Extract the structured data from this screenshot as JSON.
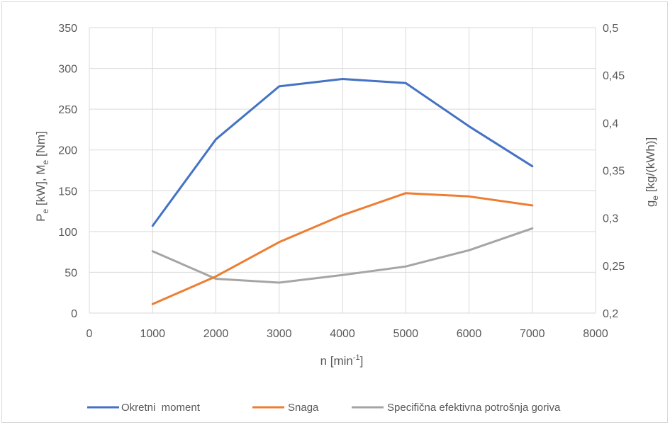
{
  "chart_data": {
    "type": "line",
    "x": [
      1000,
      2000,
      3000,
      4000,
      5000,
      6000,
      7000
    ],
    "xlim": [
      0,
      8000
    ],
    "xticks": [
      "0",
      "1000",
      "2000",
      "3000",
      "4000",
      "5000",
      "6000",
      "7000",
      "8000"
    ],
    "ylim_left": [
      0,
      350
    ],
    "yticks_left": [
      "0",
      "50",
      "100",
      "150",
      "200",
      "250",
      "300",
      "350"
    ],
    "ylim_right": [
      0.2,
      0.5
    ],
    "yticks_right": [
      "0,2",
      "0,25",
      "0,3",
      "0,35",
      "0,4",
      "0,45",
      "0,5"
    ],
    "xlabel": {
      "base": "n [min",
      "sup": "-1",
      "end": "]"
    },
    "ylabel_left": {
      "p": "P",
      "p_sub": "e",
      "mid": " [kW], M",
      "m_sub": "e",
      "end": " [Nm]"
    },
    "ylabel_right": {
      "g": "g",
      "g_sub": "e",
      "end": " [kg/(kWh)]"
    },
    "grid": true,
    "legend_position": "bottom",
    "series": [
      {
        "name": "Okretni  moment",
        "axis": "left",
        "color": "#4472c4",
        "values": [
          107,
          213,
          278,
          287,
          282,
          229,
          180
        ]
      },
      {
        "name": "Snaga",
        "axis": "left",
        "color": "#ed7d31",
        "values": [
          11,
          45,
          87,
          120,
          147,
          143,
          132
        ]
      },
      {
        "name": "Specifična efektivna potrošnja goriva",
        "axis": "right",
        "color": "#a5a5a5",
        "values": [
          0.265,
          0.236,
          0.232,
          0.24,
          0.249,
          0.266,
          0.289
        ]
      }
    ]
  }
}
